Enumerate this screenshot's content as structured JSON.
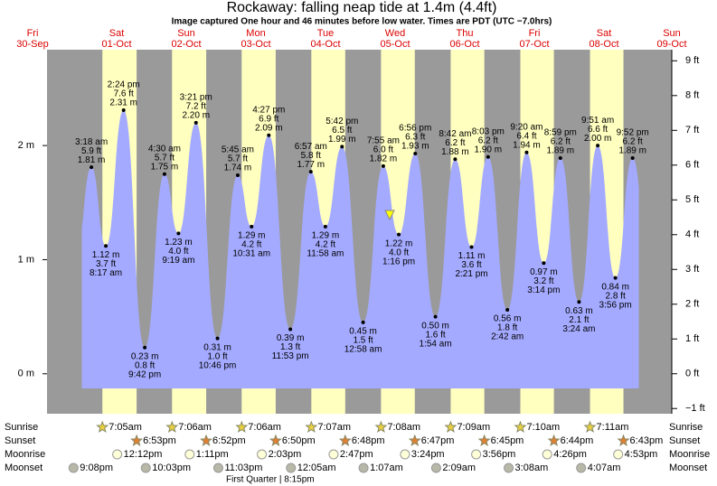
{
  "chart_data": {
    "type": "area",
    "title": "Rockaway: falling  neap tide at 1.4m (4.4ft)",
    "subtitle": "Image captured One hour and 46 minutes before low water. Times are PDT (UTC −7.0hrs)",
    "ylim": [
      -0.35,
      2.84
    ],
    "yticks": [
      {
        "value": 0,
        "label": "0 m"
      },
      {
        "value": 1,
        "label": "1 m"
      },
      {
        "value": 2,
        "label": "2 m"
      }
    ],
    "y2lim": [
      -1.15,
      9.32
    ],
    "y2ticks": [
      {
        "value": -1,
        "label": "−1 ft"
      },
      {
        "value": 0,
        "label": "0 ft"
      },
      {
        "value": 1,
        "label": "1 ft"
      },
      {
        "value": 2,
        "label": "2 ft"
      },
      {
        "value": 3,
        "label": "3 ft"
      },
      {
        "value": 4,
        "label": "4 ft"
      },
      {
        "value": 5,
        "label": "5 ft"
      },
      {
        "value": 6,
        "label": "6 ft"
      },
      {
        "value": 7,
        "label": "7 ft"
      },
      {
        "value": 8,
        "label": "8 ft"
      },
      {
        "value": 9,
        "label": "9 ft"
      }
    ],
    "row_labels": {
      "sunrise": "Sunrise",
      "sunset": "Sunset",
      "moonrise": "Moonrise",
      "moonset": "Moonset"
    },
    "moon_phase": "First Quarter | 8:15pm",
    "days": [
      {
        "weekday": "Fri",
        "date": "30-Sep",
        "moonset": "9:08pm"
      },
      {
        "weekday": "Sat",
        "date": "01-Oct",
        "sunrise": "7:05am",
        "sunset": "6:53pm",
        "moonrise": "12:12pm",
        "moonset": "10:03pm",
        "tides": [
          {
            "time": "3:18 am",
            "m": {
              "value": 1.81,
              "label": "1.81 m"
            },
            "ft": {
              "value": 5.9,
              "label": "5.9 ft"
            }
          },
          {
            "time": "8:17 am",
            "m": {
              "value": 1.12,
              "label": "1.12 m"
            },
            "ft": {
              "value": 3.7,
              "label": "3.7 ft"
            }
          },
          {
            "time": "2:24 pm",
            "m": {
              "value": 2.31,
              "label": "2.31 m"
            },
            "ft": {
              "value": 7.6,
              "label": "7.6 ft"
            }
          },
          {
            "time": "9:42 pm",
            "m": {
              "value": 0.23,
              "label": "0.23 m"
            },
            "ft": {
              "value": 0.8,
              "label": "0.8 ft"
            }
          }
        ]
      },
      {
        "weekday": "Sun",
        "date": "02-Oct",
        "sunrise": "7:06am",
        "sunset": "6:52pm",
        "moonrise": "1:11pm",
        "moonset": "11:03pm",
        "tides": [
          {
            "time": "4:30 am",
            "m": {
              "value": 1.75,
              "label": "1.75 m"
            },
            "ft": {
              "value": 5.7,
              "label": "5.7 ft"
            }
          },
          {
            "time": "9:19 am",
            "m": {
              "value": 1.23,
              "label": "1.23 m"
            },
            "ft": {
              "value": 4.0,
              "label": "4.0 ft"
            }
          },
          {
            "time": "3:21 pm",
            "m": {
              "value": 2.2,
              "label": "2.20 m"
            },
            "ft": {
              "value": 7.2,
              "label": "7.2 ft"
            }
          },
          {
            "time": "10:46 pm",
            "m": {
              "value": 0.31,
              "label": "0.31 m"
            },
            "ft": {
              "value": 1.0,
              "label": "1.0 ft"
            }
          }
        ]
      },
      {
        "weekday": "Mon",
        "date": "03-Oct",
        "sunrise": "7:06am",
        "sunset": "6:50pm",
        "moonrise": "2:03pm",
        "tides": [
          {
            "time": "5:45 am",
            "m": {
              "value": 1.74,
              "label": "1.74 m"
            },
            "ft": {
              "value": 5.7,
              "label": "5.7 ft"
            }
          },
          {
            "time": "10:31 am",
            "m": {
              "value": 1.29,
              "label": "1.29 m"
            },
            "ft": {
              "value": 4.2,
              "label": "4.2 ft"
            }
          },
          {
            "time": "4:27 pm",
            "m": {
              "value": 2.09,
              "label": "2.09 m"
            },
            "ft": {
              "value": 6.9,
              "label": "6.9 ft"
            }
          },
          {
            "time": "11:53 pm",
            "m": {
              "value": 0.39,
              "label": "0.39 m"
            },
            "ft": {
              "value": 1.3,
              "label": "1.3 ft"
            }
          }
        ]
      },
      {
        "weekday": "Tue",
        "date": "04-Oct",
        "sunrise": "7:07am",
        "sunset": "6:48pm",
        "moonrise": "2:47pm",
        "moonset": "12:05am",
        "tides": [
          {
            "time": "6:57 am",
            "m": {
              "value": 1.77,
              "label": "1.77 m"
            },
            "ft": {
              "value": 5.8,
              "label": "5.8 ft"
            }
          },
          {
            "time": "11:58 am",
            "m": {
              "value": 1.29,
              "label": "1.29 m"
            },
            "ft": {
              "value": 4.2,
              "label": "4.2 ft"
            }
          },
          {
            "time": "5:42 pm",
            "m": {
              "value": 1.99,
              "label": "1.99 m"
            },
            "ft": {
              "value": 6.5,
              "label": "6.5 ft"
            }
          }
        ]
      },
      {
        "weekday": "Wed",
        "date": "05-Oct",
        "sunrise": "7:08am",
        "sunset": "6:47pm",
        "moonrise": "3:24pm",
        "moonset": "1:07am",
        "tides": [
          {
            "time": "12:58 am",
            "m": {
              "value": 0.45,
              "label": "0.45 m"
            },
            "ft": {
              "value": 1.5,
              "label": "1.5 ft"
            }
          },
          {
            "time": "7:55 am",
            "m": {
              "value": 1.82,
              "label": "1.82 m"
            },
            "ft": {
              "value": 6.0,
              "label": "6.0 ft"
            }
          },
          {
            "time": "1:16 pm",
            "m": {
              "value": 1.22,
              "label": "1.22 m"
            },
            "ft": {
              "value": 4.0,
              "label": "4.0 ft"
            }
          },
          {
            "time": "6:56 pm",
            "m": {
              "value": 1.93,
              "label": "1.93 m"
            },
            "ft": {
              "value": 6.3,
              "label": "6.3 ft"
            }
          }
        ]
      },
      {
        "weekday": "Thu",
        "date": "06-Oct",
        "sunrise": "7:09am",
        "sunset": "6:45pm",
        "moonrise": "3:56pm",
        "moonset": "2:09am",
        "tides": [
          {
            "time": "1:54 am",
            "m": {
              "value": 0.5,
              "label": "0.50 m"
            },
            "ft": {
              "value": 1.6,
              "label": "1.6 ft"
            }
          },
          {
            "time": "8:42 am",
            "m": {
              "value": 1.88,
              "label": "1.88 m"
            },
            "ft": {
              "value": 6.2,
              "label": "6.2 ft"
            }
          },
          {
            "time": "2:21 pm",
            "m": {
              "value": 1.11,
              "label": "1.11 m"
            },
            "ft": {
              "value": 3.6,
              "label": "3.6 ft"
            }
          },
          {
            "time": "8:03 pm",
            "m": {
              "value": 1.9,
              "label": "1.90 m"
            },
            "ft": {
              "value": 6.2,
              "label": "6.2 ft"
            }
          }
        ]
      },
      {
        "weekday": "Fri",
        "date": "07-Oct",
        "sunrise": "7:10am",
        "sunset": "6:44pm",
        "moonrise": "4:26pm",
        "moonset": "3:08am",
        "tides": [
          {
            "time": "2:42 am",
            "m": {
              "value": 0.56,
              "label": "0.56 m"
            },
            "ft": {
              "value": 1.8,
              "label": "1.8 ft"
            }
          },
          {
            "time": "9:20 am",
            "m": {
              "value": 1.94,
              "label": "1.94 m"
            },
            "ft": {
              "value": 6.4,
              "label": "6.4 ft"
            }
          },
          {
            "time": "3:14 pm",
            "m": {
              "value": 0.97,
              "label": "0.97 m"
            },
            "ft": {
              "value": 3.2,
              "label": "3.2 ft"
            }
          },
          {
            "time": "8:59 pm",
            "m": {
              "value": 1.89,
              "label": "1.89 m"
            },
            "ft": {
              "value": 6.2,
              "label": "6.2 ft"
            }
          }
        ]
      },
      {
        "weekday": "Sat",
        "date": "08-Oct",
        "sunrise": "7:11am",
        "sunset": "6:43pm",
        "moonrise": "4:53pm",
        "moonset": "4:07am",
        "tides": [
          {
            "time": "3:24 am",
            "m": {
              "value": 0.63,
              "label": "0.63 m"
            },
            "ft": {
              "value": 2.1,
              "label": "2.1 ft"
            }
          },
          {
            "time": "9:51 am",
            "m": {
              "value": 2.0,
              "label": "2.00 m"
            },
            "ft": {
              "value": 6.6,
              "label": "6.6 ft"
            }
          },
          {
            "time": "3:56 pm",
            "m": {
              "value": 0.84,
              "label": "0.84 m"
            },
            "ft": {
              "value": 2.8,
              "label": "2.8 ft"
            }
          },
          {
            "time": "9:52 pm",
            "m": {
              "value": 1.89,
              "label": "1.89 m"
            },
            "ft": {
              "value": 6.2,
              "label": "6.2 ft"
            }
          }
        ]
      },
      {
        "weekday": "Sun",
        "date": "09-Oct"
      }
    ]
  }
}
